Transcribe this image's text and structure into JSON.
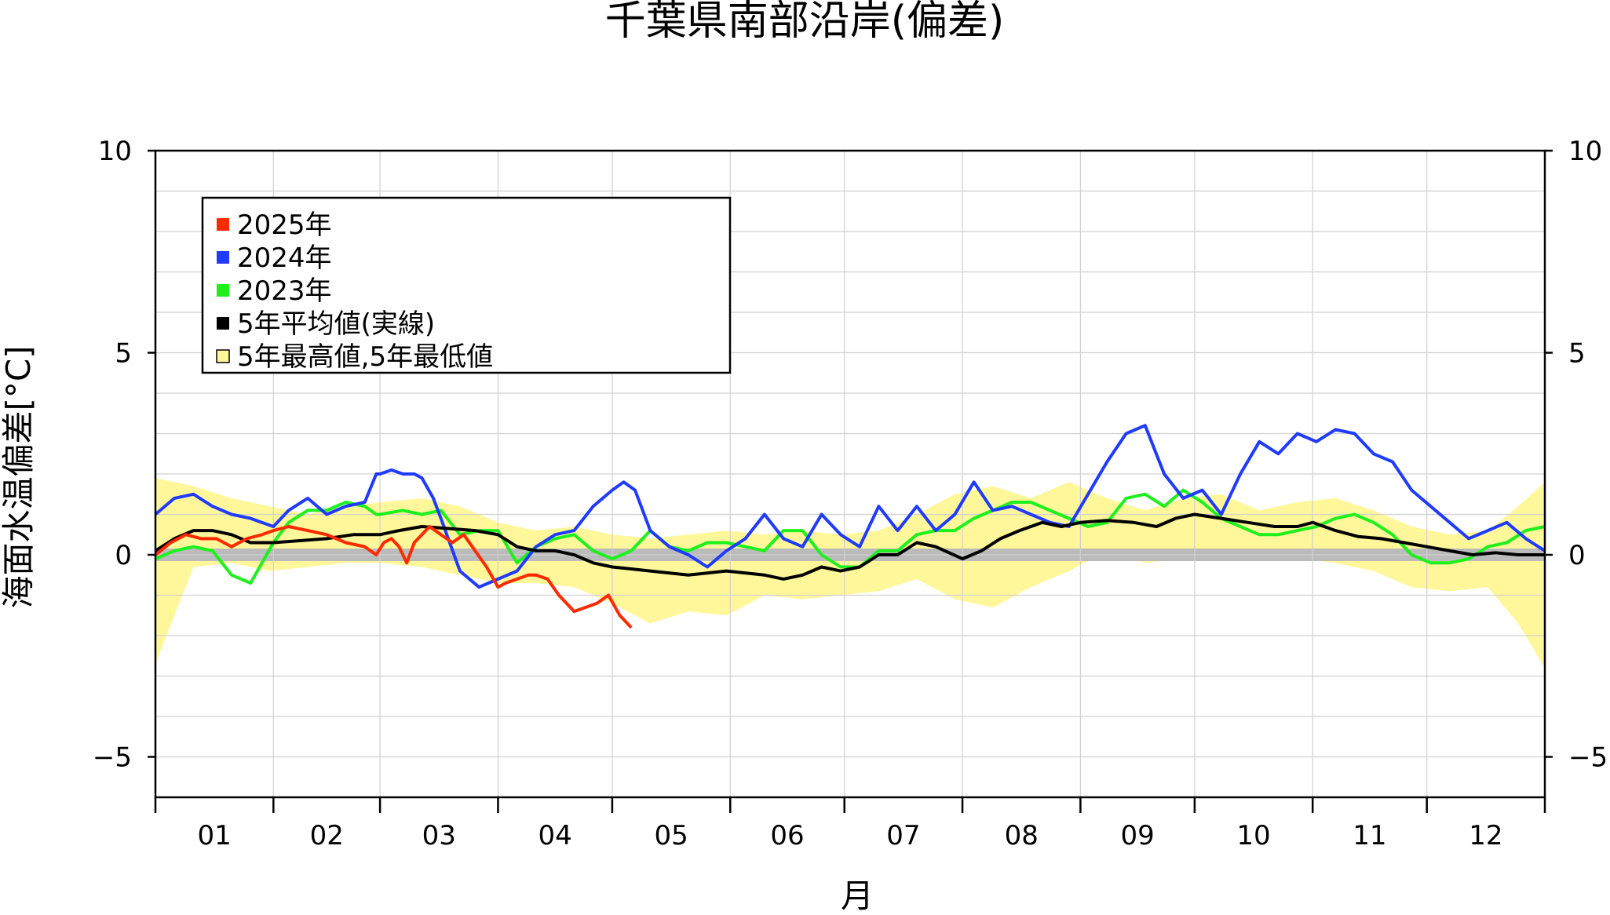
{
  "chart_data": {
    "type": "line",
    "title": "千葉県南部沿岸(偏差)",
    "xlabel": "月",
    "ylabel": "海面水温偏差[°C]",
    "ylim": [
      -6,
      10
    ],
    "xlim": [
      0,
      365
    ],
    "y_ticks": [
      {
        "value": 10,
        "label": "10"
      },
      {
        "value": 5,
        "label": "5"
      },
      {
        "value": 0,
        "label": "0"
      },
      {
        "value": -5,
        "label": "−5"
      }
    ],
    "month_labels": [
      "01",
      "02",
      "03",
      "04",
      "05",
      "06",
      "07",
      "08",
      "09",
      "10",
      "11",
      "12"
    ],
    "month_starts": [
      0,
      31,
      59,
      90,
      120,
      151,
      181,
      212,
      243,
      273,
      304,
      334,
      365
    ],
    "grid": true,
    "legend": {
      "position": "top-left",
      "entries": [
        {
          "label": "2025年",
          "color": "#ff2a00",
          "marker": "filled-square"
        },
        {
          "label": "2024年",
          "color": "#1f3bff",
          "marker": "filled-square"
        },
        {
          "label": "2023年",
          "color": "#1ef01e",
          "marker": "filled-square"
        },
        {
          "label": "5年平均値(実線)",
          "color": "#000000",
          "marker": "filled-square"
        },
        {
          "label": "5年最高値,5年最低値",
          "color": "#fff799",
          "marker": "outlined-square"
        }
      ]
    },
    "zero_band_color": "#bbbbbb",
    "band": {
      "name": "5年最高値,5年最低値",
      "color": "#fff799",
      "x": [
        0,
        10,
        20,
        30,
        40,
        50,
        59,
        70,
        80,
        90,
        100,
        110,
        120,
        130,
        140,
        150,
        160,
        170,
        180,
        190,
        200,
        210,
        220,
        230,
        240,
        250,
        260,
        270,
        280,
        290,
        300,
        310,
        320,
        330,
        340,
        350,
        358,
        365
      ],
      "upper": [
        1.9,
        1.7,
        1.4,
        1.2,
        1.0,
        1.2,
        1.3,
        1.4,
        1.2,
        0.8,
        0.6,
        0.7,
        0.5,
        0.4,
        0.5,
        0.6,
        0.5,
        0.6,
        0.5,
        0.6,
        1.0,
        1.5,
        1.7,
        1.4,
        1.8,
        1.4,
        1.1,
        1.4,
        1.5,
        1.1,
        1.3,
        1.4,
        1.1,
        0.7,
        0.5,
        0.6,
        1.2,
        1.8
      ],
      "lower": [
        -2.7,
        -0.3,
        -0.2,
        -0.4,
        -0.3,
        -0.2,
        -0.2,
        -0.3,
        -0.5,
        -0.7,
        -0.7,
        -0.8,
        -1.2,
        -1.7,
        -1.4,
        -1.5,
        -1.0,
        -1.1,
        -1.0,
        -0.9,
        -0.6,
        -1.1,
        -1.3,
        -0.8,
        -0.4,
        0.1,
        -0.2,
        -0.1,
        0.0,
        -0.1,
        -0.1,
        -0.2,
        -0.4,
        -0.8,
        -0.9,
        -0.8,
        -1.7,
        -2.8
      ]
    },
    "series": [
      {
        "name": "5年平均値(実線)",
        "color": "#000000",
        "x": [
          0,
          5,
          10,
          15,
          20,
          25,
          31,
          38,
          45,
          52,
          59,
          64,
          70,
          77,
          84,
          90,
          95,
          100,
          105,
          110,
          115,
          120,
          125,
          130,
          140,
          150,
          160,
          165,
          170,
          175,
          180,
          185,
          190,
          195,
          200,
          205,
          212,
          217,
          222,
          227,
          233,
          238,
          243,
          250,
          257,
          263,
          268,
          273,
          280,
          287,
          294,
          300,
          304,
          310,
          316,
          322,
          328,
          334,
          340,
          346,
          352,
          358,
          365
        ],
        "y": [
          0.1,
          0.4,
          0.6,
          0.6,
          0.5,
          0.3,
          0.3,
          0.35,
          0.4,
          0.5,
          0.5,
          0.6,
          0.7,
          0.65,
          0.6,
          0.5,
          0.2,
          0.1,
          0.1,
          0.0,
          -0.2,
          -0.3,
          -0.35,
          -0.4,
          -0.5,
          -0.4,
          -0.5,
          -0.6,
          -0.5,
          -0.3,
          -0.4,
          -0.3,
          0.0,
          0.0,
          0.3,
          0.2,
          -0.1,
          0.1,
          0.4,
          0.6,
          0.8,
          0.7,
          0.8,
          0.85,
          0.8,
          0.7,
          0.9,
          1.0,
          0.9,
          0.8,
          0.7,
          0.7,
          0.8,
          0.6,
          0.45,
          0.4,
          0.3,
          0.2,
          0.1,
          0.0,
          0.05,
          0.0,
          0.0
        ]
      },
      {
        "name": "2023年",
        "color": "#1ef01e",
        "x": [
          0,
          5,
          10,
          15,
          20,
          25,
          31,
          35,
          40,
          45,
          50,
          55,
          58,
          59,
          65,
          70,
          75,
          80,
          85,
          90,
          95,
          100,
          105,
          110,
          115,
          120,
          125,
          130,
          135,
          140,
          145,
          150,
          155,
          160,
          165,
          170,
          175,
          180,
          185,
          190,
          195,
          200,
          205,
          210,
          215,
          220,
          225,
          230,
          235,
          240,
          245,
          250,
          255,
          260,
          265,
          270,
          275,
          280,
          285,
          290,
          295,
          300,
          305,
          310,
          315,
          320,
          325,
          330,
          335,
          340,
          345,
          350,
          355,
          360,
          365
        ],
        "y": [
          -0.1,
          0.1,
          0.2,
          0.1,
          -0.5,
          -0.7,
          0.3,
          0.8,
          1.1,
          1.1,
          1.3,
          1.2,
          1.0,
          1.0,
          1.1,
          1.0,
          1.1,
          0.5,
          0.6,
          0.6,
          -0.2,
          0.2,
          0.4,
          0.5,
          0.1,
          -0.1,
          0.1,
          0.6,
          0.2,
          0.1,
          0.3,
          0.3,
          0.2,
          0.1,
          0.6,
          0.6,
          0.0,
          -0.3,
          -0.3,
          0.1,
          0.1,
          0.5,
          0.6,
          0.6,
          0.9,
          1.1,
          1.3,
          1.3,
          1.1,
          0.9,
          0.7,
          0.8,
          1.4,
          1.5,
          1.2,
          1.6,
          1.3,
          0.9,
          0.7,
          0.5,
          0.5,
          0.6,
          0.7,
          0.9,
          1.0,
          0.8,
          0.5,
          0.0,
          -0.2,
          -0.2,
          -0.1,
          0.2,
          0.3,
          0.6,
          0.7
        ]
      },
      {
        "name": "2024年",
        "color": "#1f3bff",
        "x": [
          0,
          5,
          10,
          15,
          20,
          25,
          31,
          35,
          40,
          45,
          50,
          55,
          58,
          59,
          62,
          65,
          68,
          70,
          73,
          75,
          80,
          85,
          90,
          95,
          100,
          105,
          110,
          115,
          120,
          123,
          126,
          130,
          135,
          140,
          145,
          150,
          155,
          160,
          165,
          170,
          175,
          180,
          185,
          190,
          195,
          200,
          205,
          210,
          215,
          220,
          225,
          230,
          235,
          240,
          245,
          250,
          255,
          260,
          265,
          270,
          275,
          280,
          285,
          290,
          295,
          300,
          305,
          310,
          315,
          320,
          325,
          330,
          335,
          340,
          345,
          350,
          355,
          360,
          365
        ],
        "y": [
          1.0,
          1.4,
          1.5,
          1.2,
          1.0,
          0.9,
          0.7,
          1.1,
          1.4,
          1.0,
          1.2,
          1.3,
          2.0,
          2.0,
          2.1,
          2.0,
          2.0,
          1.9,
          1.4,
          0.9,
          -0.4,
          -0.8,
          -0.6,
          -0.4,
          0.2,
          0.5,
          0.6,
          1.2,
          1.6,
          1.8,
          1.6,
          0.6,
          0.2,
          0.0,
          -0.3,
          0.1,
          0.4,
          1.0,
          0.4,
          0.2,
          1.0,
          0.5,
          0.2,
          1.2,
          0.6,
          1.2,
          0.6,
          1.0,
          1.8,
          1.1,
          1.2,
          1.0,
          0.8,
          0.7,
          1.5,
          2.3,
          3.0,
          3.2,
          2.0,
          1.4,
          1.6,
          1.0,
          2.0,
          2.8,
          2.5,
          3.0,
          2.8,
          3.1,
          3.0,
          2.5,
          2.3,
          1.6,
          1.2,
          0.8,
          0.4,
          0.6,
          0.8,
          0.4,
          0.1
        ]
      },
      {
        "name": "2025年",
        "color": "#ff2a00",
        "x": [
          0,
          4,
          8,
          12,
          16,
          20,
          24,
          28,
          31,
          35,
          40,
          45,
          50,
          55,
          58,
          60,
          62,
          64,
          66,
          68,
          70,
          72,
          75,
          78,
          81,
          84,
          87,
          90,
          92,
          95,
          98,
          100,
          103,
          106,
          110,
          113,
          116,
          119,
          122,
          125
        ],
        "y": [
          0.0,
          0.3,
          0.5,
          0.4,
          0.4,
          0.2,
          0.4,
          0.5,
          0.6,
          0.7,
          0.6,
          0.5,
          0.3,
          0.2,
          0.0,
          0.3,
          0.4,
          0.2,
          -0.2,
          0.3,
          0.5,
          0.7,
          0.5,
          0.3,
          0.5,
          0.1,
          -0.3,
          -0.8,
          -0.7,
          -0.6,
          -0.5,
          -0.5,
          -0.6,
          -1.0,
          -1.4,
          -1.3,
          -1.2,
          -1.0,
          -1.5,
          -1.8
        ]
      }
    ]
  }
}
